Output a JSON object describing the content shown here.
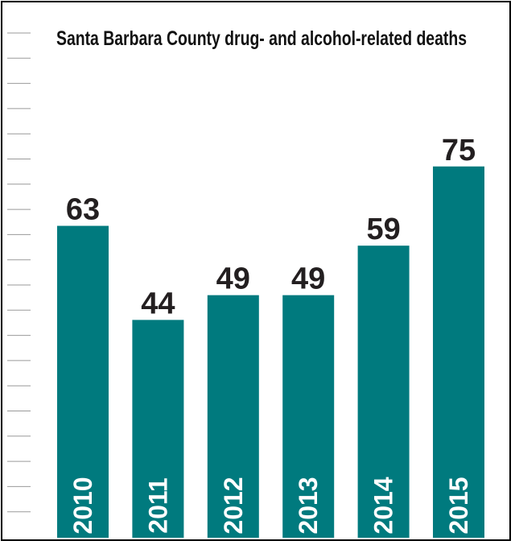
{
  "chart_data": {
    "type": "bar",
    "title": "Santa Barbara County drug- and alcohol-related deaths",
    "categories": [
      "2010",
      "2011",
      "2012",
      "2013",
      "2014",
      "2015"
    ],
    "values": [
      63,
      44,
      49,
      49,
      59,
      75
    ],
    "data_labels": [
      "63",
      "44",
      "49",
      "49",
      "59",
      "75"
    ],
    "xlabel": "",
    "ylabel": "",
    "ylim": [
      0,
      94
    ],
    "grid": false,
    "legend": "none",
    "colors": {
      "bar": "#007a7e",
      "tick": "#9a9a9a",
      "label": "#231f20",
      "category_text": "#ffffff",
      "border": "#000000"
    }
  }
}
